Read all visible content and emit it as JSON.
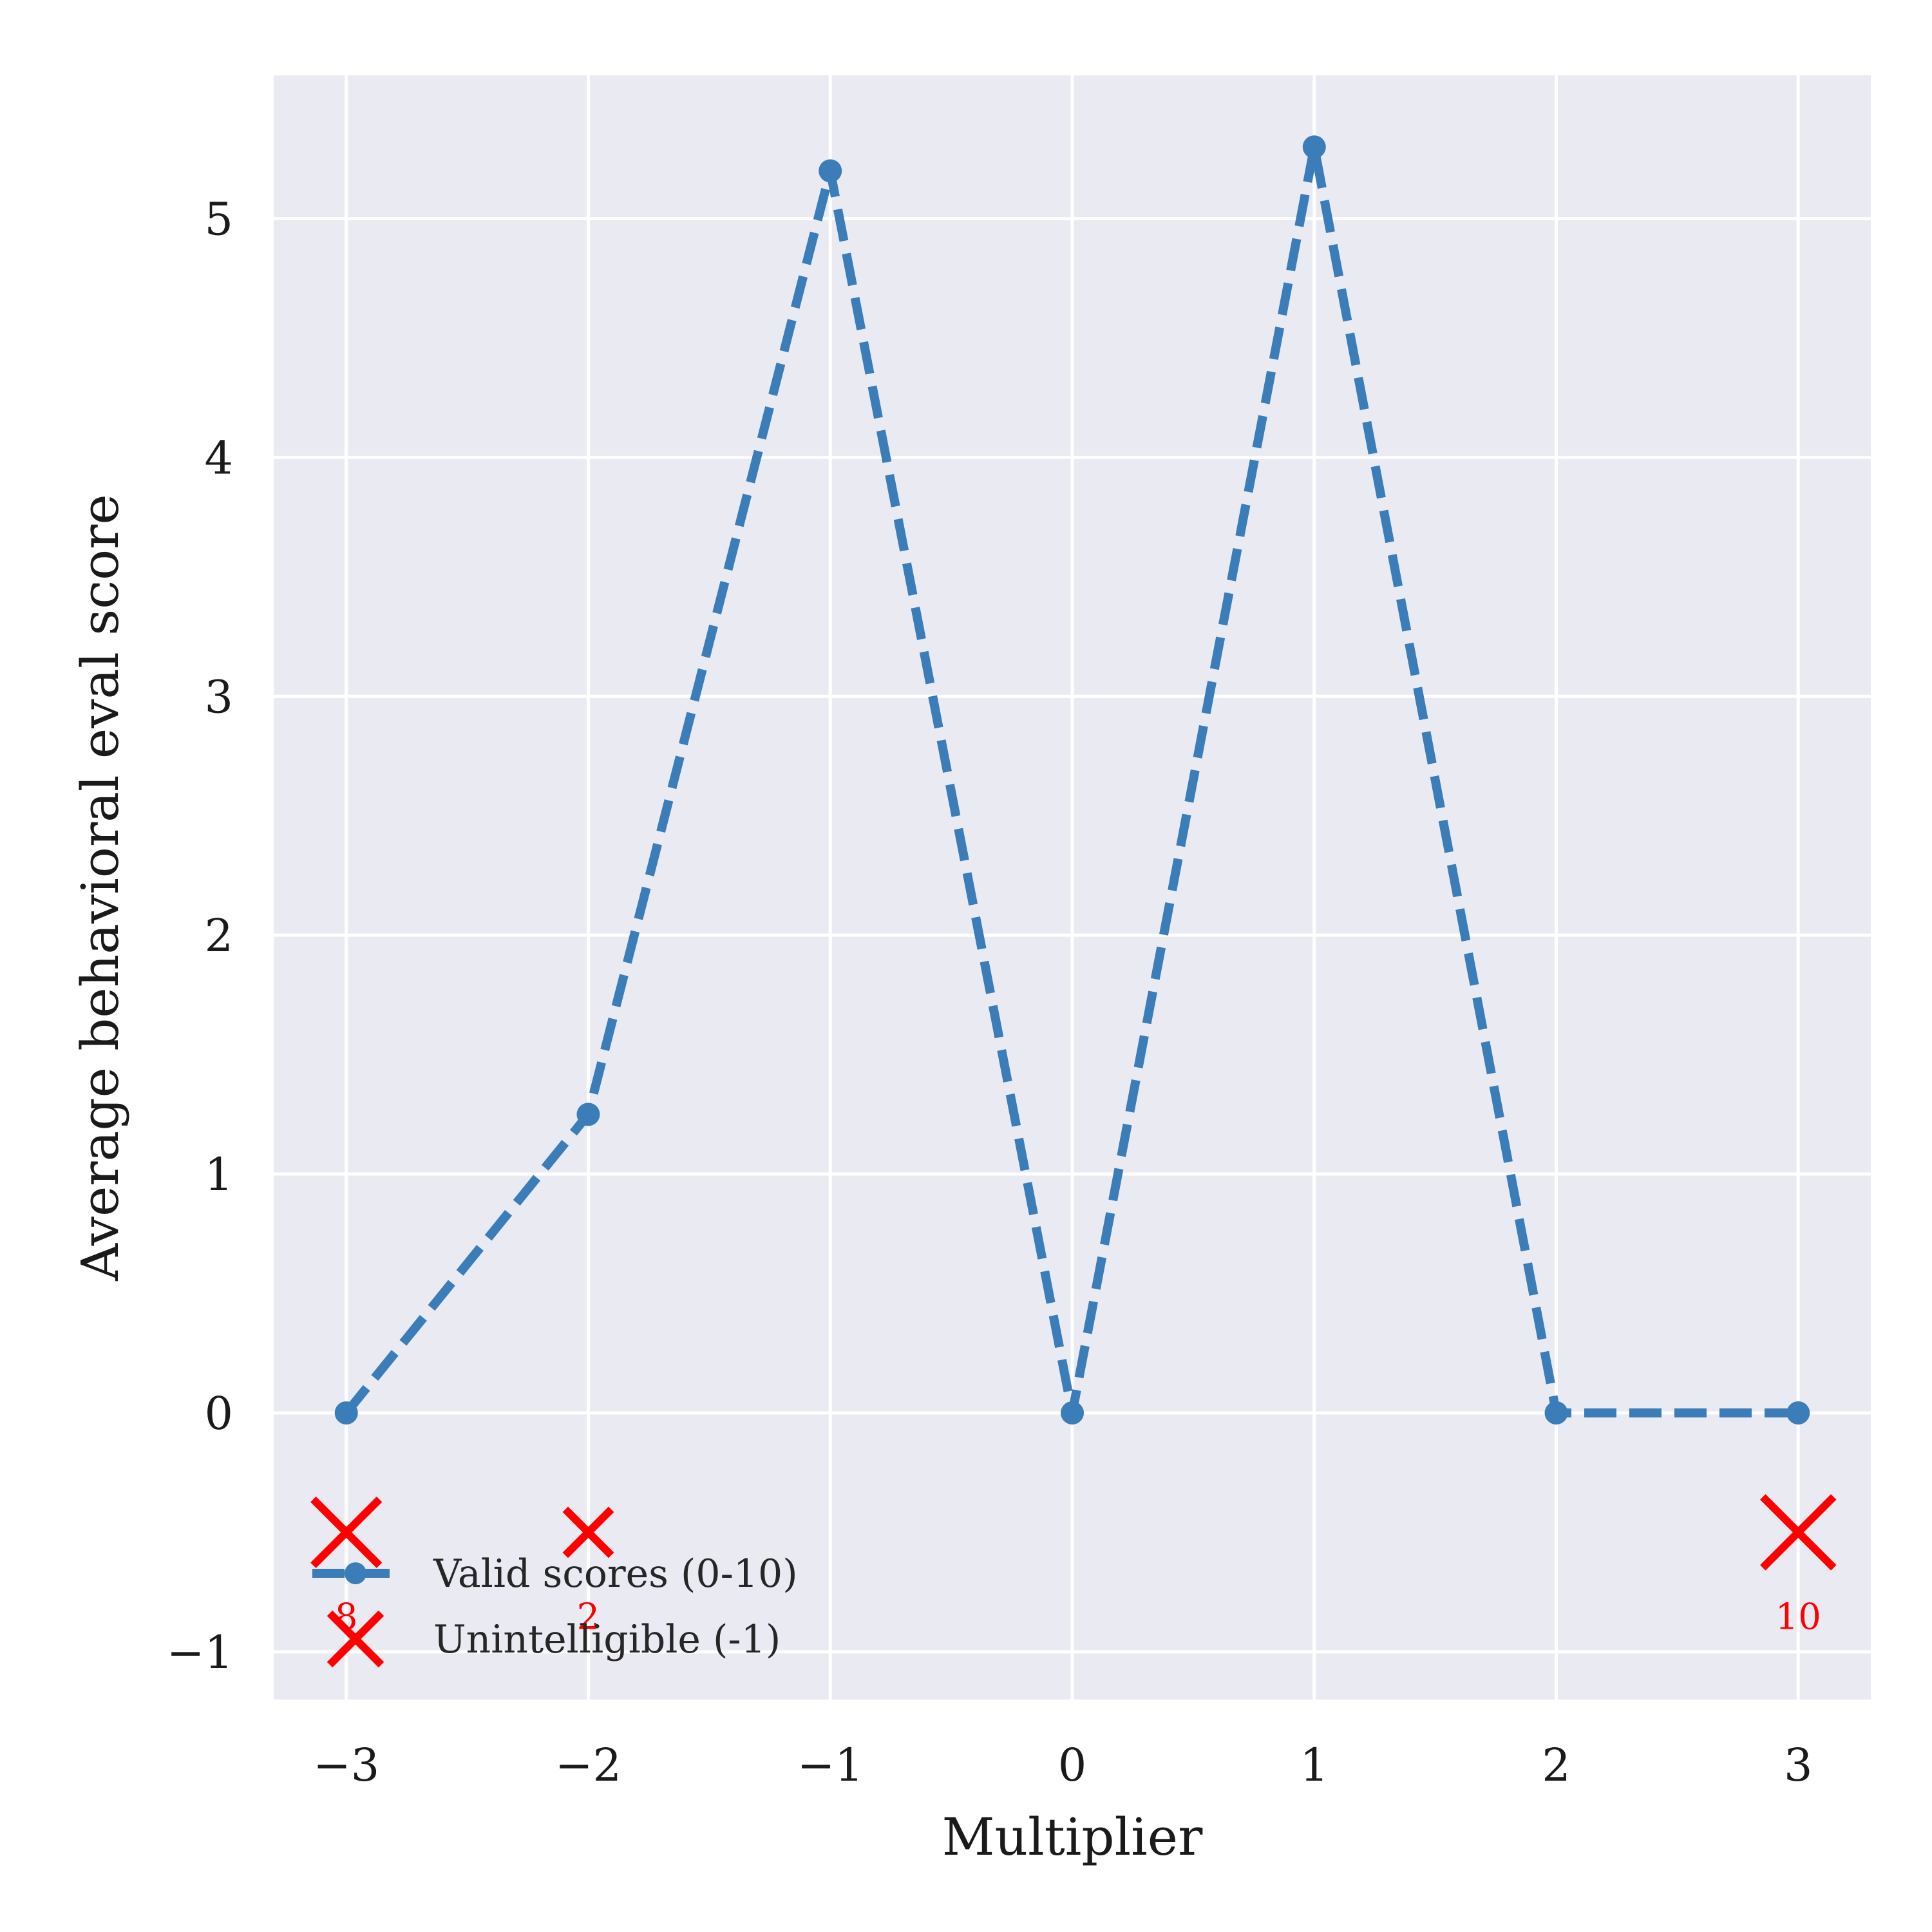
{
  "chart_data": {
    "type": "line",
    "title": "",
    "xlabel": "Multiplier",
    "ylabel": "Average behavioral eval score",
    "xlim": [
      -3.3,
      3.3
    ],
    "ylim": [
      -1.2,
      5.6
    ],
    "x_ticks": [
      -3,
      -2,
      -1,
      0,
      1,
      2,
      3
    ],
    "x_tick_labels": [
      "−3",
      "−2",
      "−1",
      "0",
      "1",
      "2",
      "3"
    ],
    "y_ticks": [
      -1,
      0,
      1,
      2,
      3,
      4,
      5
    ],
    "y_tick_labels": [
      "−1",
      "0",
      "1",
      "2",
      "3",
      "4",
      "5"
    ],
    "grid": true,
    "background": "#eaeaf2",
    "series": [
      {
        "name": "Valid scores (0-10)",
        "color": "#3a7db8",
        "style": "dashed-line-with-dots",
        "x": [
          -3,
          -2,
          -1,
          0,
          1,
          2,
          3
        ],
        "y": [
          0,
          1.25,
          5.2,
          0,
          5.3,
          0,
          0
        ]
      },
      {
        "name": "Unintelligible (-1)",
        "color": "#ff0000",
        "style": "x-markers",
        "x": [
          -3,
          -2,
          3
        ],
        "y": [
          -0.5,
          -0.5,
          -0.5
        ],
        "counts": [
          8,
          2,
          10
        ],
        "count_labels": [
          "8",
          "2",
          "10"
        ]
      }
    ],
    "legend": {
      "position": "lower-left",
      "entries": [
        "Valid scores (0-10)",
        "Unintelligible (-1)"
      ]
    }
  }
}
